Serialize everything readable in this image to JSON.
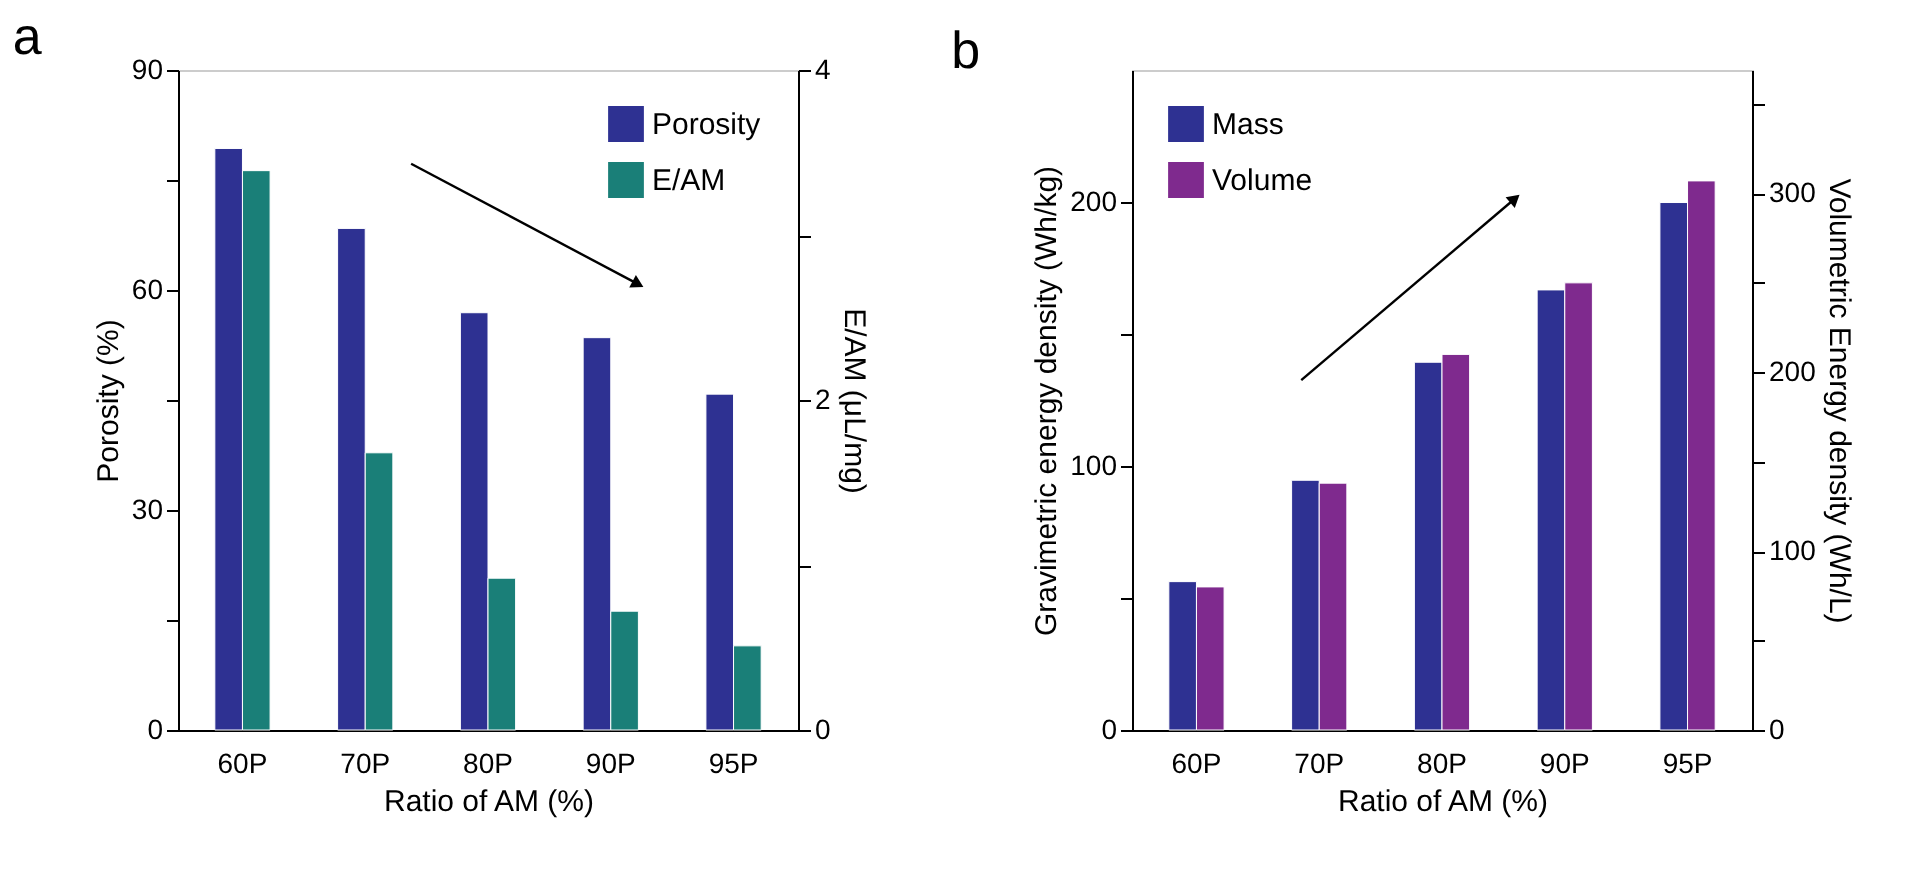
{
  "chart_data": [
    {
      "type": "bar",
      "title": "a",
      "categories": [
        "60P",
        "70P",
        "80P",
        "90P",
        "95P"
      ],
      "xlabel": "Ratio of AM (%)",
      "ylabel": "Porosity (%)",
      "y2label": "E/AM (μL/mg)",
      "ylim": [
        0,
        90
      ],
      "yticks": [
        0,
        {
          "value": 15,
          "label": null
        },
        30,
        {
          "value": 45,
          "label": null
        },
        60,
        {
          "value": 75,
          "label": null
        },
        90
      ],
      "y2lim": [
        0,
        4
      ],
      "y2ticks": [
        0,
        {
          "value": 1,
          "label": null
        },
        2,
        {
          "value": 3,
          "label": null
        },
        4
      ],
      "legend": "top right",
      "grid": false,
      "series": [
        {
          "name": "Porosity",
          "color": "#2e3192",
          "values": [
            79.3,
            68.4,
            56.9,
            53.5,
            45.8
          ]
        },
        {
          "name": "E/AM",
          "color": "#1a7f78",
          "axis": "y2",
          "values": [
            3.39,
            1.68,
            0.92,
            0.72,
            0.51
          ]
        }
      ]
    },
    {
      "type": "bar",
      "title": "b",
      "categories": [
        "60P",
        "70P",
        "80P",
        "90P",
        "95P"
      ],
      "xlabel": "Ratio of AM (%)",
      "ylabel": "Gravimetric energy density (Wh/kg)",
      "y2label": "Volumetric Energy density (Wh/L)",
      "ylim": [
        0,
        250
      ],
      "yticks": [
        0,
        {
          "value": 50,
          "label": null
        },
        100,
        {
          "value": 150,
          "label": null
        },
        200
      ],
      "y2lim": [
        0,
        369
      ],
      "y2ticks": [
        0,
        {
          "value": 50,
          "label": null
        },
        100,
        {
          "value": 150,
          "label": null
        },
        200,
        {
          "value": 250,
          "label": null
        },
        300,
        {
          "value": 350,
          "label": null
        }
      ],
      "legend": "top left",
      "grid": false,
      "series": [
        {
          "name": "Mass",
          "color": "#2e3192",
          "values": [
            56.2,
            94.6,
            139.3,
            166.7,
            199.8
          ]
        },
        {
          "name": "Volume",
          "color": "#7f2a8e",
          "axis": "y2",
          "values": [
            80,
            138,
            210,
            250,
            307
          ]
        }
      ]
    }
  ]
}
